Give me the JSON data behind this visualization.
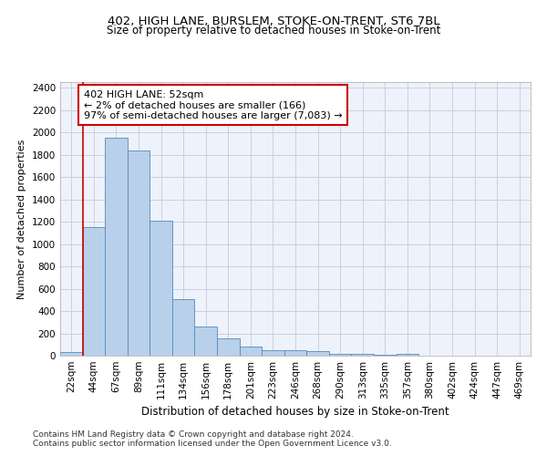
{
  "title1": "402, HIGH LANE, BURSLEM, STOKE-ON-TRENT, ST6 7BL",
  "title2": "Size of property relative to detached houses in Stoke-on-Trent",
  "xlabel": "Distribution of detached houses by size in Stoke-on-Trent",
  "ylabel": "Number of detached properties",
  "categories": [
    "22sqm",
    "44sqm",
    "67sqm",
    "89sqm",
    "111sqm",
    "134sqm",
    "156sqm",
    "178sqm",
    "201sqm",
    "223sqm",
    "246sqm",
    "268sqm",
    "290sqm",
    "313sqm",
    "335sqm",
    "357sqm",
    "380sqm",
    "402sqm",
    "424sqm",
    "447sqm",
    "469sqm"
  ],
  "values": [
    30,
    1150,
    1950,
    1840,
    1210,
    510,
    265,
    155,
    80,
    50,
    45,
    40,
    20,
    20,
    12,
    20,
    0,
    0,
    0,
    0,
    0
  ],
  "bar_color": "#b8d0ea",
  "bar_edge_color": "#5588bb",
  "vline_x": 0.5,
  "vline_color": "#cc0000",
  "annotation_text": "402 HIGH LANE: 52sqm\n← 2% of detached houses are smaller (166)\n97% of semi-detached houses are larger (7,083) →",
  "annotation_box_color": "#ffffff",
  "annotation_box_edge": "#cc0000",
  "ylim": [
    0,
    2450
  ],
  "yticks": [
    0,
    200,
    400,
    600,
    800,
    1000,
    1200,
    1400,
    1600,
    1800,
    2000,
    2200,
    2400
  ],
  "footer1": "Contains HM Land Registry data © Crown copyright and database right 2024.",
  "footer2": "Contains public sector information licensed under the Open Government Licence v3.0.",
  "bg_color": "#eef2fa",
  "grid_color": "#c8d0e0",
  "title1_fontsize": 9.5,
  "title2_fontsize": 8.5,
  "xlabel_fontsize": 8.5,
  "ylabel_fontsize": 8,
  "tick_fontsize": 7.5,
  "annot_fontsize": 8,
  "footer_fontsize": 6.5
}
